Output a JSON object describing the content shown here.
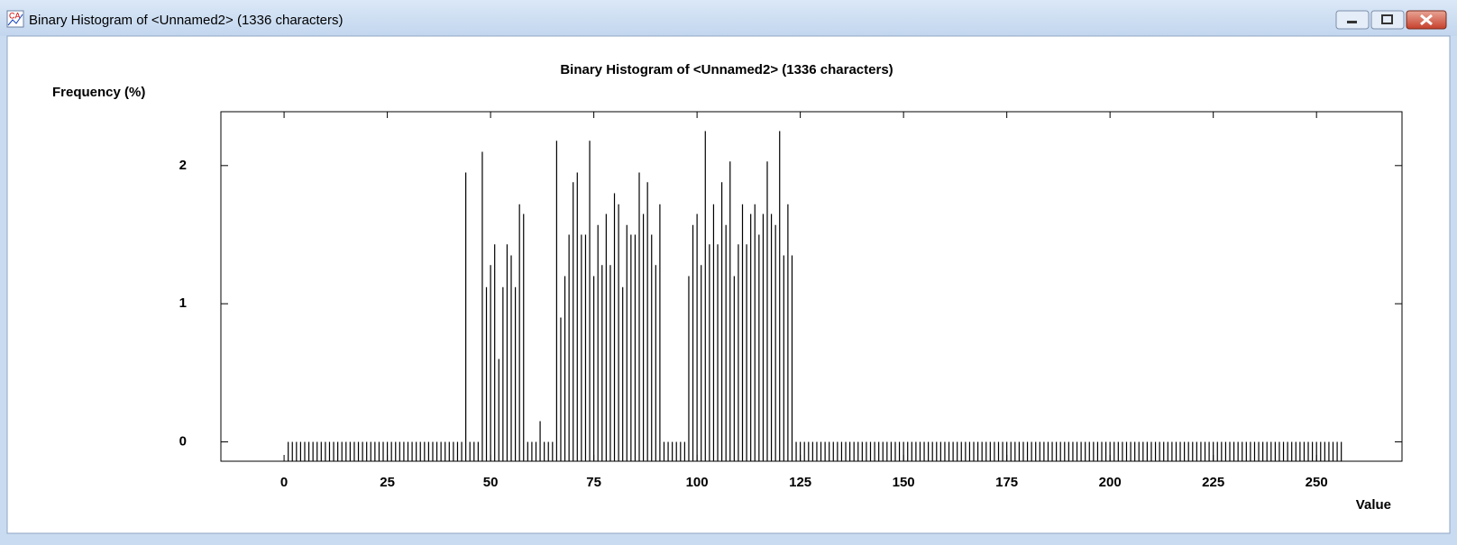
{
  "window": {
    "title": "Binary Histogram of <Unnamed2> (1336 characters)"
  },
  "chart_data": {
    "type": "bar",
    "title": "Binary Histogram of <Unnamed2> (1336 characters)",
    "y_label": "Frequency (%)",
    "x_label": "Value",
    "color": "#000000",
    "xlim": [
      -15.3,
      270.7
    ],
    "ylim": [
      -0.14,
      2.39
    ],
    "xticks": [
      0,
      25,
      50,
      75,
      100,
      125,
      150,
      175,
      200,
      225,
      250
    ],
    "yticks": [
      0,
      1,
      2
    ],
    "x": [
      1,
      2,
      3,
      4,
      5,
      6,
      7,
      8,
      9,
      10,
      11,
      12,
      13,
      14,
      15,
      16,
      17,
      18,
      19,
      20,
      21,
      22,
      23,
      24,
      25,
      26,
      27,
      28,
      29,
      30,
      31,
      32,
      33,
      34,
      35,
      36,
      37,
      38,
      39,
      40,
      41,
      42,
      43,
      44,
      45,
      46,
      47,
      48,
      49,
      50,
      51,
      52,
      53,
      54,
      55,
      56,
      57,
      58,
      59,
      60,
      61,
      62,
      63,
      64,
      65,
      66,
      67,
      68,
      69,
      70,
      71,
      72,
      73,
      74,
      75,
      76,
      77,
      78,
      79,
      80,
      81,
      82,
      83,
      84,
      85,
      86,
      87,
      88,
      89,
      90,
      91,
      92,
      93,
      94,
      95,
      96,
      97,
      98,
      99,
      100,
      101,
      102,
      103,
      104,
      105,
      106,
      107,
      108,
      109,
      110,
      111,
      112,
      113,
      114,
      115,
      116,
      117,
      118,
      119,
      120,
      121,
      122,
      123,
      124,
      125,
      126,
      127,
      128,
      129,
      130,
      131,
      132,
      133,
      134,
      135,
      136,
      137,
      138,
      139,
      140,
      141,
      142,
      143,
      144,
      145,
      146,
      147,
      148,
      149,
      150,
      151,
      152,
      153,
      154,
      155,
      156,
      157,
      158,
      159,
      160,
      161,
      162,
      163,
      164,
      165,
      166,
      167,
      168,
      169,
      170,
      171,
      172,
      173,
      174,
      175,
      176,
      177,
      178,
      179,
      180,
      181,
      182,
      183,
      184,
      185,
      186,
      187,
      188,
      189,
      190,
      191,
      192,
      193,
      194,
      195,
      196,
      197,
      198,
      199,
      200,
      201,
      202,
      203,
      204,
      205,
      206,
      207,
      208,
      209,
      210,
      211,
      212,
      213,
      214,
      215,
      216,
      217,
      218,
      219,
      220,
      221,
      222,
      223,
      224,
      225,
      226,
      227,
      228,
      229,
      230,
      231,
      232,
      233,
      234,
      235,
      236,
      237,
      238,
      239,
      240,
      241,
      242,
      243,
      244,
      245,
      246,
      247,
      248,
      249,
      250,
      251,
      252,
      253,
      254,
      255,
      256
    ],
    "values": [
      0,
      0,
      0,
      0,
      0,
      0,
      0,
      0,
      0,
      0,
      0,
      0,
      0,
      0,
      0,
      0,
      0,
      0,
      0,
      0,
      0,
      0,
      0,
      0,
      0,
      0,
      0,
      0,
      0,
      0,
      0,
      0,
      0,
      0,
      0,
      0,
      0,
      0,
      0,
      0,
      0,
      0,
      0,
      1.95,
      0,
      0,
      0,
      2.1,
      1.12,
      1.28,
      1.43,
      0.6,
      1.12,
      1.43,
      1.35,
      1.12,
      1.72,
      1.65,
      0,
      0,
      0,
      0.15,
      0,
      0,
      0,
      2.18,
      0.9,
      1.2,
      1.5,
      1.88,
      1.95,
      1.5,
      1.5,
      2.18,
      1.2,
      1.57,
      1.28,
      1.65,
      1.28,
      1.8,
      1.72,
      1.12,
      1.57,
      1.5,
      1.5,
      1.95,
      1.65,
      1.88,
      1.5,
      1.28,
      1.72,
      0,
      0,
      0,
      0,
      0,
      0,
      1.2,
      1.57,
      1.65,
      1.28,
      2.25,
      1.43,
      1.72,
      1.43,
      1.88,
      1.57,
      2.03,
      1.2,
      1.43,
      1.72,
      1.43,
      1.65,
      1.72,
      1.5,
      1.65,
      2.03,
      1.65,
      1.57,
      2.25,
      1.35,
      1.72,
      1.35,
      0,
      0,
      0,
      0,
      0,
      0,
      0,
      0,
      0,
      0,
      0,
      0,
      0,
      0,
      0,
      0,
      0,
      0,
      0,
      0,
      0,
      0,
      0,
      0,
      0,
      0,
      0,
      0,
      0,
      0,
      0,
      0,
      0,
      0,
      0,
      0,
      0,
      0,
      0,
      0,
      0,
      0,
      0,
      0,
      0,
      0,
      0,
      0,
      0,
      0,
      0,
      0,
      0,
      0,
      0,
      0,
      0,
      0,
      0,
      0,
      0,
      0,
      0,
      0,
      0,
      0,
      0,
      0,
      0,
      0,
      0,
      0,
      0,
      0,
      0,
      0,
      0,
      0,
      0,
      0,
      0,
      0,
      0,
      0,
      0,
      0,
      0,
      0,
      0,
      0,
      0,
      0,
      0,
      0,
      0,
      0,
      0,
      0,
      0,
      0,
      0,
      0,
      0,
      0,
      0,
      0,
      0,
      0,
      0,
      0,
      0,
      0,
      0,
      0,
      0,
      0,
      0,
      0,
      0,
      0,
      0,
      0,
      0,
      0,
      0,
      0,
      0,
      0,
      0,
      0,
      0,
      0,
      0
    ]
  }
}
